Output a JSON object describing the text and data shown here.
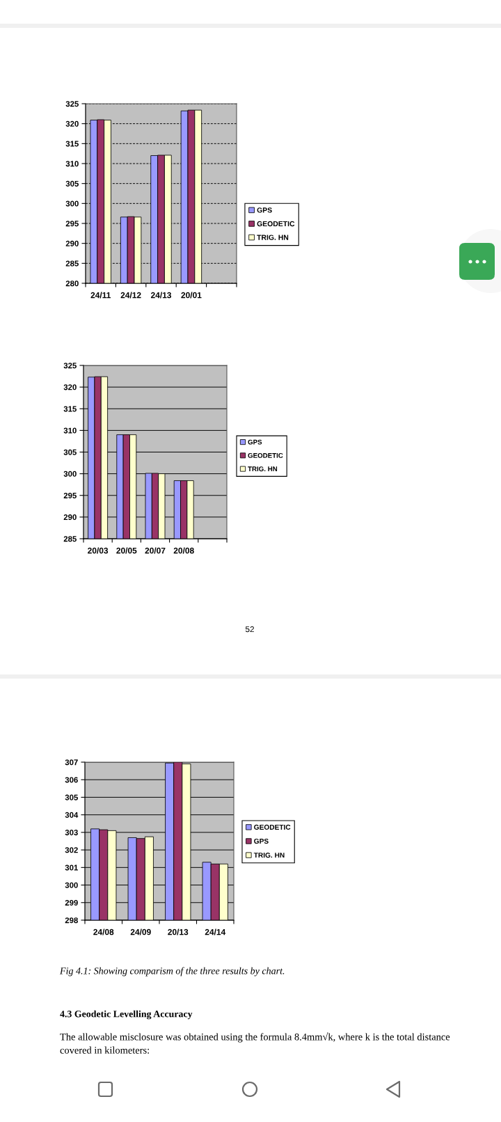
{
  "chart_data": [
    {
      "type": "bar",
      "categories": [
        "24/11",
        "24/12",
        "24/13",
        "20/01",
        null
      ],
      "series": [
        {
          "name": "GPS",
          "color": "#9999ff",
          "values": [
            320.9,
            296.6,
            312.0,
            323.2,
            null
          ]
        },
        {
          "name": "GEODETIC",
          "color": "#993366",
          "values": [
            321.0,
            296.7,
            312.1,
            323.4,
            null
          ]
        },
        {
          "name": "TRIG. HN",
          "color": "#ffffcc",
          "values": [
            320.9,
            296.6,
            312.1,
            323.4,
            null
          ]
        }
      ],
      "ylim": [
        280,
        325
      ],
      "yticks": [
        280,
        285,
        290,
        295,
        300,
        305,
        310,
        315,
        320,
        325
      ],
      "grid": "y",
      "legend": "right"
    },
    {
      "type": "bar",
      "categories": [
        "20/03",
        "20/05",
        "20/07",
        "20/08",
        null
      ],
      "series": [
        {
          "name": "GPS",
          "color": "#9999ff",
          "values": [
            322.3,
            309.0,
            300.1,
            298.4,
            null
          ]
        },
        {
          "name": "GEODETIC",
          "color": "#993366",
          "values": [
            322.4,
            309.0,
            300.1,
            298.4,
            null
          ]
        },
        {
          "name": "TRIG. HN",
          "color": "#ffffcc",
          "values": [
            322.4,
            309.0,
            300.0,
            298.4,
            null
          ]
        }
      ],
      "ylim": [
        285,
        325
      ],
      "yticks": [
        285,
        290,
        295,
        300,
        305,
        310,
        315,
        320,
        325
      ],
      "grid": "y",
      "legend": "right",
      "annotations": [
        "52"
      ]
    },
    {
      "type": "bar",
      "categories": [
        "24/08",
        "24/09",
        "20/13",
        "24/14"
      ],
      "series": [
        {
          "name": "GEODETIC",
          "color": "#9999ff",
          "values": [
            303.2,
            302.7,
            306.95,
            301.3
          ]
        },
        {
          "name": "GPS",
          "color": "#993366",
          "values": [
            303.15,
            302.65,
            307.0,
            301.2
          ]
        },
        {
          "name": "TRIG. HN",
          "color": "#ffffcc",
          "values": [
            303.1,
            302.75,
            306.9,
            301.2
          ]
        }
      ],
      "ylim": [
        298,
        307
      ],
      "yticks": [
        298,
        299,
        300,
        301,
        302,
        303,
        304,
        305,
        306,
        307
      ],
      "grid": "y",
      "legend": "right",
      "annotations": [
        "Fig 4.1: Showing comparism of the three results by chart.",
        "4.3 Geodetic Levelling Accuracy",
        "The allowable misclosure was obtained using the formula 8.4mm√k, where k is the total distance covered in kilometers:"
      ]
    }
  ]
}
